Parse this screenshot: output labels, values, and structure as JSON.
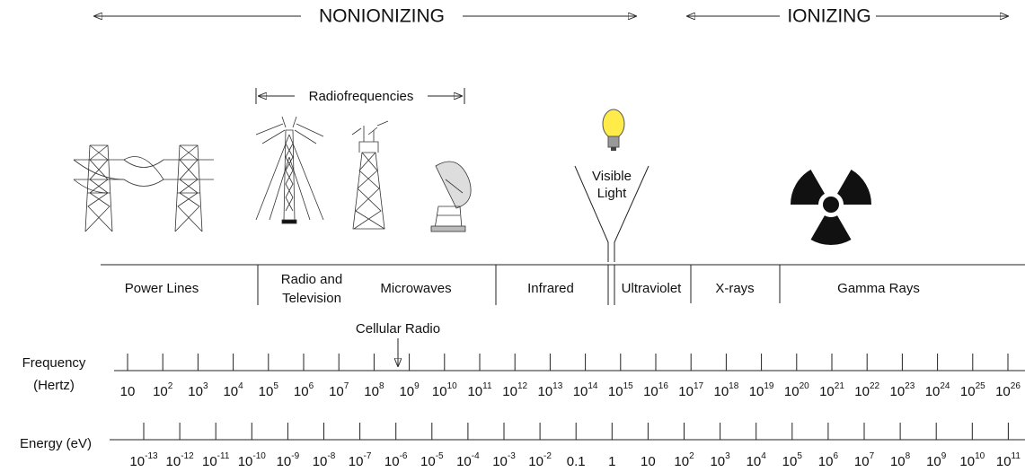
{
  "header": {
    "nonionizing": "NONIONIZING",
    "ionizing": "IONIZING",
    "radiofrequencies": "Radiofrequencies"
  },
  "icons": {
    "visible_light": [
      "Visible",
      "Light"
    ]
  },
  "bands": [
    {
      "lines": [
        "Power Lines"
      ]
    },
    {
      "lines": [
        "Radio and",
        "Television"
      ]
    },
    {
      "lines": [
        "Microwaves"
      ]
    },
    {
      "lines": [
        "Infrared"
      ]
    },
    {
      "lines": [
        "Ultraviolet"
      ]
    },
    {
      "lines": [
        "X-rays"
      ]
    },
    {
      "lines": [
        "Gamma Rays"
      ]
    }
  ],
  "annotation": "Cellular Radio",
  "frequency": {
    "label": "Frequency",
    "unit": "(Hertz)",
    "ticks": [
      {
        "base": "10"
      },
      {
        "base": "10",
        "exp": "2"
      },
      {
        "base": "10",
        "exp": "3"
      },
      {
        "base": "10",
        "exp": "4"
      },
      {
        "base": "10",
        "exp": "5"
      },
      {
        "base": "10",
        "exp": "6"
      },
      {
        "base": "10",
        "exp": "7"
      },
      {
        "base": "10",
        "exp": "8"
      },
      {
        "base": "10",
        "exp": "9"
      },
      {
        "base": "10",
        "exp": "10"
      },
      {
        "base": "10",
        "exp": "11"
      },
      {
        "base": "10",
        "exp": "12"
      },
      {
        "base": "10",
        "exp": "13"
      },
      {
        "base": "10",
        "exp": "14"
      },
      {
        "base": "10",
        "exp": "15"
      },
      {
        "base": "10",
        "exp": "16"
      },
      {
        "base": "10",
        "exp": "17"
      },
      {
        "base": "10",
        "exp": "18"
      },
      {
        "base": "10",
        "exp": "19"
      },
      {
        "base": "10",
        "exp": "20"
      },
      {
        "base": "10",
        "exp": "21"
      },
      {
        "base": "10",
        "exp": "22"
      },
      {
        "base": "10",
        "exp": "23"
      },
      {
        "base": "10",
        "exp": "24"
      },
      {
        "base": "10",
        "exp": "25"
      },
      {
        "base": "10",
        "exp": "26"
      }
    ]
  },
  "energy": {
    "label": "Energy (eV)",
    "ticks": [
      {
        "base": "10",
        "exp": "-13"
      },
      {
        "base": "10",
        "exp": "-12"
      },
      {
        "base": "10",
        "exp": "-11"
      },
      {
        "base": "10",
        "exp": "-10"
      },
      {
        "base": "10",
        "exp": "-9"
      },
      {
        "base": "10",
        "exp": "-8"
      },
      {
        "base": "10",
        "exp": "-7"
      },
      {
        "base": "10",
        "exp": "-6"
      },
      {
        "base": "10",
        "exp": "-5"
      },
      {
        "base": "10",
        "exp": "-4"
      },
      {
        "base": "10",
        "exp": "-3"
      },
      {
        "base": "10",
        "exp": "-2"
      },
      {
        "base": "0.1"
      },
      {
        "base": "1"
      },
      {
        "base": "10"
      },
      {
        "base": "10",
        "exp": "2"
      },
      {
        "base": "10",
        "exp": "3"
      },
      {
        "base": "10",
        "exp": "4"
      },
      {
        "base": "10",
        "exp": "5"
      },
      {
        "base": "10",
        "exp": "6"
      },
      {
        "base": "10",
        "exp": "7"
      },
      {
        "base": "10",
        "exp": "8"
      },
      {
        "base": "10",
        "exp": "9"
      },
      {
        "base": "10",
        "exp": "10"
      },
      {
        "base": "10",
        "exp": "11"
      }
    ]
  }
}
